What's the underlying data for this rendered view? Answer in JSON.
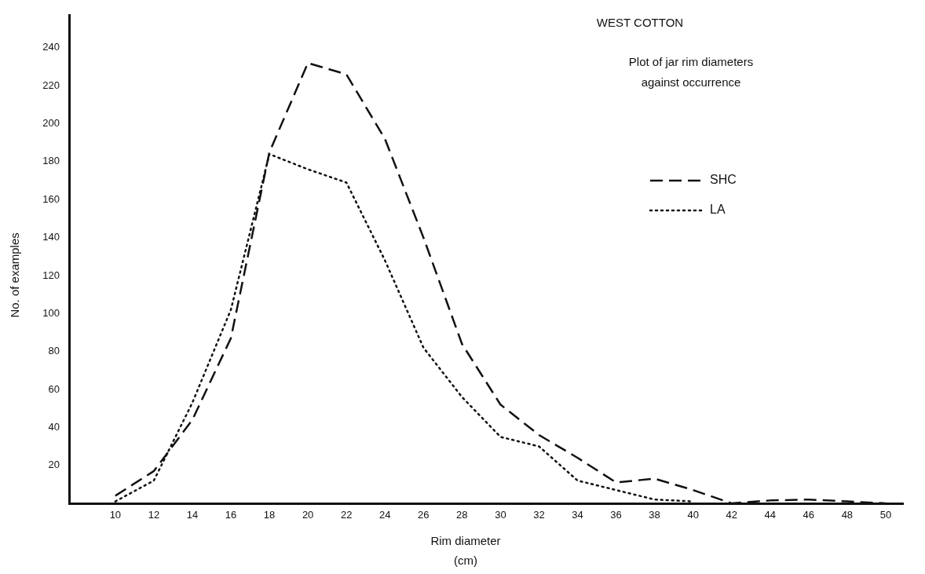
{
  "chart_data": {
    "type": "line",
    "title": "WEST COTTON",
    "subtitle": "Plot of jar rim diameters\nagainst occurrence",
    "xlabel": "Rim diameter\n(cm)",
    "ylabel": "No. of examples",
    "x": [
      10,
      12,
      14,
      16,
      18,
      20,
      22,
      24,
      26,
      28,
      30,
      32,
      34,
      36,
      38,
      40,
      42,
      44,
      46,
      48,
      50
    ],
    "series": [
      {
        "name": "SHC",
        "color": "#111111",
        "line_style": "dashed",
        "values": [
          4,
          17,
          44,
          87,
          185,
          232,
          226,
          192,
          140,
          84,
          52,
          36,
          24,
          11,
          13,
          7,
          0,
          1.5,
          2,
          1,
          0
        ]
      },
      {
        "name": "LA",
        "color": "#111111",
        "line_style": "dotted",
        "values": [
          1,
          12,
          53,
          102,
          184,
          176,
          169,
          128,
          82,
          56,
          35,
          30,
          12,
          7,
          2,
          1,
          null,
          null,
          null,
          null,
          null
        ]
      }
    ],
    "xlim": [
      7.6,
      50.9
    ],
    "xticks": [
      10,
      12,
      14,
      16,
      18,
      20,
      22,
      24,
      26,
      28,
      30,
      32,
      34,
      36,
      38,
      40,
      42,
      44,
      46,
      48,
      50
    ],
    "ylim": [
      0,
      257
    ],
    "yticks": [
      20,
      40,
      60,
      80,
      100,
      120,
      140,
      160,
      180,
      200,
      220,
      240
    ],
    "grid": false,
    "legend": "top right",
    "marker": "none"
  }
}
